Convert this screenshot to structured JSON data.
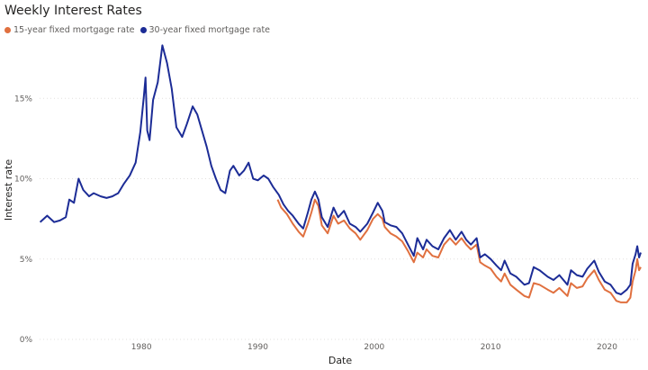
{
  "chart_data": {
    "type": "line",
    "title": "Weekly Interest Rates",
    "xlabel": "Date",
    "ylabel": "Interest rate",
    "xlim": [
      1971.25,
      2022.9
    ],
    "ylim": [
      0,
      18.6
    ],
    "grid": true,
    "legend_position": "top-left",
    "x_ticks": [
      {
        "value": 1980,
        "label": "1980"
      },
      {
        "value": 1990,
        "label": "1990"
      },
      {
        "value": 2000,
        "label": "2000"
      },
      {
        "value": 2010,
        "label": "2010"
      },
      {
        "value": 2020,
        "label": "2020"
      }
    ],
    "y_ticks": [
      {
        "value": 0,
        "label": "0%"
      },
      {
        "value": 5,
        "label": "5%"
      },
      {
        "value": 10,
        "label": "10%"
      },
      {
        "value": 15,
        "label": "15%"
      }
    ],
    "series": [
      {
        "name": "15-year fixed mortgage rate",
        "color": "#E0703F",
        "points": [
          [
            1991.7,
            8.7
          ],
          [
            1992.0,
            8.2
          ],
          [
            1992.5,
            7.8
          ],
          [
            1993.0,
            7.2
          ],
          [
            1993.5,
            6.7
          ],
          [
            1993.9,
            6.4
          ],
          [
            1994.3,
            7.2
          ],
          [
            1994.6,
            7.9
          ],
          [
            1994.9,
            8.7
          ],
          [
            1995.2,
            8.3
          ],
          [
            1995.5,
            7.1
          ],
          [
            1996.0,
            6.6
          ],
          [
            1996.5,
            7.7
          ],
          [
            1996.9,
            7.2
          ],
          [
            1997.4,
            7.4
          ],
          [
            1997.9,
            6.9
          ],
          [
            1998.4,
            6.6
          ],
          [
            1998.8,
            6.2
          ],
          [
            1999.4,
            6.8
          ],
          [
            1999.9,
            7.5
          ],
          [
            2000.3,
            7.8
          ],
          [
            2000.7,
            7.5
          ],
          [
            2000.9,
            7.0
          ],
          [
            2001.4,
            6.6
          ],
          [
            2001.9,
            6.4
          ],
          [
            2002.4,
            6.1
          ],
          [
            2002.9,
            5.5
          ],
          [
            2003.4,
            4.8
          ],
          [
            2003.7,
            5.4
          ],
          [
            2004.2,
            5.1
          ],
          [
            2004.5,
            5.6
          ],
          [
            2005.0,
            5.2
          ],
          [
            2005.5,
            5.1
          ],
          [
            2006.0,
            5.9
          ],
          [
            2006.5,
            6.3
          ],
          [
            2007.0,
            5.9
          ],
          [
            2007.5,
            6.3
          ],
          [
            2007.9,
            5.9
          ],
          [
            2008.3,
            5.6
          ],
          [
            2008.8,
            5.9
          ],
          [
            2009.1,
            4.8
          ],
          [
            2009.5,
            4.6
          ],
          [
            2010.0,
            4.4
          ],
          [
            2010.5,
            3.9
          ],
          [
            2010.9,
            3.6
          ],
          [
            2011.2,
            4.1
          ],
          [
            2011.7,
            3.4
          ],
          [
            2012.2,
            3.1
          ],
          [
            2012.9,
            2.7
          ],
          [
            2013.3,
            2.6
          ],
          [
            2013.7,
            3.5
          ],
          [
            2014.2,
            3.4
          ],
          [
            2014.9,
            3.1
          ],
          [
            2015.4,
            2.9
          ],
          [
            2015.9,
            3.2
          ],
          [
            2016.6,
            2.7
          ],
          [
            2016.9,
            3.5
          ],
          [
            2017.4,
            3.2
          ],
          [
            2017.9,
            3.3
          ],
          [
            2018.3,
            3.8
          ],
          [
            2018.9,
            4.3
          ],
          [
            2019.3,
            3.7
          ],
          [
            2019.8,
            3.1
          ],
          [
            2020.3,
            2.9
          ],
          [
            2020.8,
            2.4
          ],
          [
            2021.2,
            2.3
          ],
          [
            2021.7,
            2.3
          ],
          [
            2022.0,
            2.6
          ],
          [
            2022.2,
            3.6
          ],
          [
            2022.45,
            4.3
          ],
          [
            2022.6,
            5.0
          ],
          [
            2022.75,
            4.3
          ],
          [
            2022.9,
            4.5
          ]
        ]
      },
      {
        "name": "30-year fixed mortgage rate",
        "color": "#1C2C96",
        "points": [
          [
            1971.3,
            7.3
          ],
          [
            1971.9,
            7.7
          ],
          [
            1972.5,
            7.3
          ],
          [
            1973.0,
            7.4
          ],
          [
            1973.5,
            7.6
          ],
          [
            1973.8,
            8.7
          ],
          [
            1974.2,
            8.5
          ],
          [
            1974.6,
            10.0
          ],
          [
            1975.0,
            9.3
          ],
          [
            1975.5,
            8.9
          ],
          [
            1975.9,
            9.1
          ],
          [
            1976.5,
            8.9
          ],
          [
            1977.0,
            8.8
          ],
          [
            1977.5,
            8.9
          ],
          [
            1978.0,
            9.1
          ],
          [
            1978.5,
            9.7
          ],
          [
            1979.0,
            10.2
          ],
          [
            1979.5,
            11.0
          ],
          [
            1979.9,
            12.9
          ],
          [
            1980.2,
            15.1
          ],
          [
            1980.35,
            16.3
          ],
          [
            1980.5,
            13.0
          ],
          [
            1980.7,
            12.4
          ],
          [
            1981.0,
            14.9
          ],
          [
            1981.4,
            16.0
          ],
          [
            1981.8,
            18.3
          ],
          [
            1982.2,
            17.2
          ],
          [
            1982.6,
            15.6
          ],
          [
            1983.0,
            13.2
          ],
          [
            1983.5,
            12.6
          ],
          [
            1983.9,
            13.4
          ],
          [
            1984.4,
            14.5
          ],
          [
            1984.8,
            14.0
          ],
          [
            1985.2,
            13.0
          ],
          [
            1985.6,
            12.0
          ],
          [
            1986.0,
            10.8
          ],
          [
            1986.4,
            10.0
          ],
          [
            1986.8,
            9.3
          ],
          [
            1987.2,
            9.1
          ],
          [
            1987.6,
            10.5
          ],
          [
            1987.9,
            10.8
          ],
          [
            1988.4,
            10.2
          ],
          [
            1988.8,
            10.5
          ],
          [
            1989.2,
            11.0
          ],
          [
            1989.6,
            10.0
          ],
          [
            1990.0,
            9.9
          ],
          [
            1990.5,
            10.2
          ],
          [
            1990.9,
            10.0
          ],
          [
            1991.3,
            9.5
          ],
          [
            1991.8,
            9.0
          ],
          [
            1992.2,
            8.4
          ],
          [
            1992.6,
            8.0
          ],
          [
            1993.0,
            7.7
          ],
          [
            1993.5,
            7.2
          ],
          [
            1993.9,
            6.9
          ],
          [
            1994.3,
            7.9
          ],
          [
            1994.6,
            8.7
          ],
          [
            1994.9,
            9.2
          ],
          [
            1995.2,
            8.7
          ],
          [
            1995.5,
            7.6
          ],
          [
            1996.0,
            7.0
          ],
          [
            1996.5,
            8.2
          ],
          [
            1996.9,
            7.6
          ],
          [
            1997.4,
            8.0
          ],
          [
            1997.9,
            7.2
          ],
          [
            1998.4,
            7.0
          ],
          [
            1998.8,
            6.7
          ],
          [
            1999.4,
            7.2
          ],
          [
            1999.9,
            7.9
          ],
          [
            2000.3,
            8.5
          ],
          [
            2000.7,
            8.0
          ],
          [
            2000.9,
            7.3
          ],
          [
            2001.4,
            7.1
          ],
          [
            2001.9,
            7.0
          ],
          [
            2002.4,
            6.6
          ],
          [
            2002.9,
            5.9
          ],
          [
            2003.4,
            5.2
          ],
          [
            2003.7,
            6.3
          ],
          [
            2004.2,
            5.6
          ],
          [
            2004.5,
            6.2
          ],
          [
            2005.0,
            5.8
          ],
          [
            2005.5,
            5.6
          ],
          [
            2006.0,
            6.3
          ],
          [
            2006.5,
            6.8
          ],
          [
            2007.0,
            6.2
          ],
          [
            2007.5,
            6.7
          ],
          [
            2007.9,
            6.2
          ],
          [
            2008.3,
            5.9
          ],
          [
            2008.8,
            6.3
          ],
          [
            2009.1,
            5.1
          ],
          [
            2009.5,
            5.3
          ],
          [
            2010.0,
            5.0
          ],
          [
            2010.5,
            4.6
          ],
          [
            2010.9,
            4.3
          ],
          [
            2011.2,
            4.9
          ],
          [
            2011.7,
            4.1
          ],
          [
            2012.2,
            3.9
          ],
          [
            2012.9,
            3.4
          ],
          [
            2013.3,
            3.5
          ],
          [
            2013.7,
            4.5
          ],
          [
            2014.2,
            4.3
          ],
          [
            2014.9,
            3.9
          ],
          [
            2015.4,
            3.7
          ],
          [
            2015.9,
            4.0
          ],
          [
            2016.6,
            3.4
          ],
          [
            2016.9,
            4.3
          ],
          [
            2017.4,
            4.0
          ],
          [
            2017.9,
            3.9
          ],
          [
            2018.3,
            4.4
          ],
          [
            2018.9,
            4.9
          ],
          [
            2019.3,
            4.2
          ],
          [
            2019.8,
            3.6
          ],
          [
            2020.3,
            3.4
          ],
          [
            2020.8,
            2.9
          ],
          [
            2021.2,
            2.8
          ],
          [
            2021.7,
            3.1
          ],
          [
            2022.0,
            3.4
          ],
          [
            2022.2,
            4.7
          ],
          [
            2022.45,
            5.3
          ],
          [
            2022.6,
            5.8
          ],
          [
            2022.75,
            5.1
          ],
          [
            2022.9,
            5.4
          ]
        ]
      }
    ]
  }
}
